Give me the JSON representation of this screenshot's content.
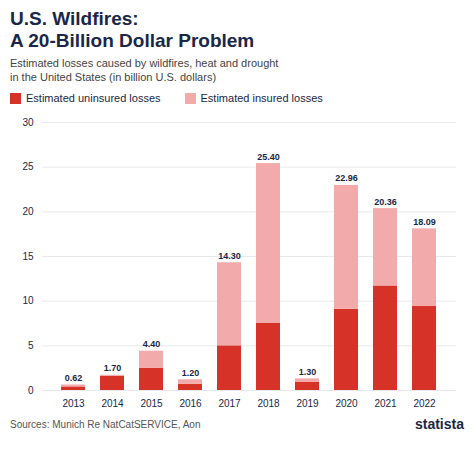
{
  "chart_data": {
    "type": "bar",
    "stacked": true,
    "title": "U.S. Wildfires:\nA 20-Billion Dollar Problem",
    "subtitle": "Estimated losses caused by wildfires, heat and drought\nin the United States (in billion U.S. dollars)",
    "categories": [
      "2013",
      "2014",
      "2015",
      "2016",
      "2017",
      "2018",
      "2019",
      "2020",
      "2021",
      "2022"
    ],
    "series": [
      {
        "name": "Estimated uninsured losses",
        "color": "#d63227",
        "values": [
          0.4,
          1.6,
          2.5,
          0.7,
          5.0,
          7.5,
          0.9,
          9.1,
          11.7,
          9.4
        ]
      },
      {
        "name": "Estimated insured losses",
        "color": "#f2aaaa",
        "values": [
          0.22,
          0.1,
          1.9,
          0.5,
          9.3,
          17.9,
          0.4,
          13.86,
          8.66,
          8.69
        ]
      }
    ],
    "totals": [
      0.62,
      1.7,
      4.4,
      1.2,
      14.3,
      25.4,
      1.3,
      22.96,
      20.36,
      18.09
    ],
    "total_labels": [
      "0.62",
      "1.70",
      "4.40",
      "1.20",
      "14.30",
      "25.40",
      "1.30",
      "22.96",
      "20.36",
      "18.09"
    ],
    "ylim": [
      0,
      30
    ],
    "yticks": [
      0,
      5,
      10,
      15,
      20,
      25,
      30
    ],
    "grid": true,
    "legend": "top",
    "source": "Sources: Munich Re NatCatSERVICE, Aon",
    "annotations": [
      "statista"
    ]
  }
}
